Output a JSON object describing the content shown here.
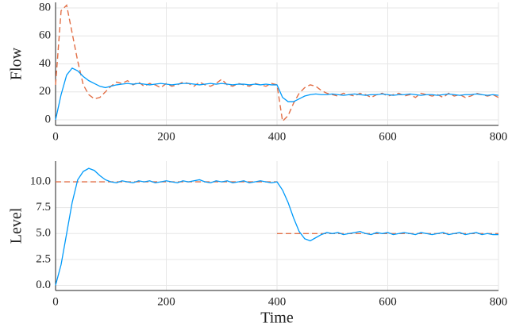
{
  "chart_data": [
    {
      "type": "line",
      "ylabel": "Flow",
      "x": [
        0,
        10,
        20,
        30,
        40,
        50,
        60,
        70,
        80,
        90,
        100,
        110,
        120,
        130,
        140,
        150,
        160,
        170,
        180,
        190,
        200,
        210,
        220,
        230,
        240,
        250,
        260,
        270,
        280,
        290,
        300,
        310,
        320,
        330,
        340,
        350,
        360,
        370,
        380,
        390,
        400,
        410,
        420,
        430,
        440,
        450,
        460,
        470,
        480,
        490,
        500,
        510,
        520,
        530,
        540,
        550,
        560,
        570,
        580,
        590,
        600,
        610,
        620,
        630,
        640,
        650,
        660,
        670,
        680,
        690,
        700,
        710,
        720,
        730,
        740,
        750,
        760,
        770,
        780,
        790,
        800
      ],
      "series": [
        {
          "color": "#e26f46",
          "dash": true,
          "values": [
            25,
            78,
            82,
            62,
            42,
            25,
            18,
            15,
            16,
            20,
            24,
            27,
            26,
            28,
            25,
            27,
            24,
            26,
            25,
            23,
            26,
            24,
            25,
            27,
            26,
            24,
            27,
            25,
            24,
            26,
            29,
            25,
            24,
            26,
            25,
            24,
            26,
            25,
            24,
            26,
            25,
            -1,
            3,
            12,
            19,
            23,
            25,
            24,
            21,
            19,
            18,
            17,
            19,
            18,
            17,
            19,
            18,
            16,
            18,
            19,
            17,
            18,
            19,
            17,
            18,
            16,
            19,
            18,
            17,
            18,
            16,
            19,
            17,
            18,
            16,
            17,
            19,
            18,
            17,
            18,
            16
          ]
        },
        {
          "color": "#009afa",
          "dash": false,
          "values": [
            0,
            18,
            32,
            37,
            35,
            31,
            28,
            26,
            24,
            23,
            24,
            25,
            25.5,
            26,
            25.5,
            26,
            25.5,
            25,
            25.5,
            26,
            25.5,
            25,
            25.5,
            26,
            26,
            25.5,
            25,
            25.5,
            26,
            25.5,
            26,
            25.5,
            25,
            25.5,
            25.5,
            25,
            25.5,
            25,
            25.5,
            25,
            25,
            16,
            13,
            13,
            15,
            17,
            18,
            18.5,
            18,
            18,
            18.5,
            18,
            17.5,
            18,
            18.5,
            18,
            17.5,
            18,
            18,
            18.5,
            18,
            17.5,
            18,
            18,
            18.5,
            18,
            17.5,
            18,
            18,
            17.5,
            18,
            18.5,
            18,
            17.5,
            18,
            18,
            18.5,
            18,
            17.5,
            18,
            17.5
          ]
        }
      ],
      "xlim": [
        0,
        800
      ],
      "xticks": [
        0,
        200,
        400,
        600,
        800
      ],
      "ylim": [
        -4,
        84
      ],
      "yticks": [
        0,
        20,
        40,
        60,
        80
      ],
      "grid": true
    },
    {
      "type": "line",
      "ylabel": "Level",
      "xlabel": "Time",
      "x": [
        0,
        10,
        20,
        30,
        40,
        50,
        60,
        70,
        80,
        90,
        100,
        110,
        120,
        130,
        140,
        150,
        160,
        170,
        180,
        190,
        200,
        210,
        220,
        230,
        240,
        250,
        260,
        270,
        280,
        290,
        300,
        310,
        320,
        330,
        340,
        350,
        360,
        370,
        380,
        390,
        400,
        410,
        420,
        430,
        440,
        450,
        460,
        470,
        480,
        490,
        500,
        510,
        520,
        530,
        540,
        550,
        560,
        570,
        580,
        590,
        600,
        610,
        620,
        630,
        640,
        650,
        660,
        670,
        680,
        690,
        700,
        710,
        720,
        730,
        740,
        750,
        760,
        770,
        780,
        790,
        800
      ],
      "series": [
        {
          "color": "#e26f46",
          "dash": true,
          "x": [
            0,
            400,
            400,
            400,
            800
          ],
          "values": [
            10,
            10,
            null,
            5,
            5
          ]
        },
        {
          "color": "#009afa",
          "dash": false,
          "values": [
            0,
            2,
            5,
            8,
            10.2,
            11,
            11.3,
            11.1,
            10.6,
            10.2,
            10,
            9.9,
            10.1,
            10,
            9.9,
            10.1,
            10,
            10.1,
            9.9,
            10,
            10.1,
            10,
            9.9,
            10.1,
            10,
            10.1,
            10.2,
            10,
            9.9,
            10.1,
            10,
            10.1,
            9.9,
            10,
            10.1,
            9.9,
            10,
            10.1,
            10,
            9.9,
            10,
            9.2,
            8,
            6.5,
            5.2,
            4.5,
            4.3,
            4.6,
            4.9,
            5.1,
            5,
            5.1,
            4.9,
            5,
            5.1,
            5.2,
            5,
            4.9,
            5.1,
            5,
            5.1,
            4.9,
            5,
            5.1,
            5,
            4.9,
            5.1,
            5,
            4.9,
            5,
            5.1,
            4.9,
            5,
            5.1,
            4.9,
            5,
            5.1,
            4.9,
            5,
            4.9,
            4.9
          ]
        }
      ],
      "xlim": [
        0,
        800
      ],
      "xticks": [
        0,
        200,
        400,
        600,
        800
      ],
      "ylim": [
        -0.5,
        12
      ],
      "yticks": [
        {
          "value": 0,
          "label": "0.0"
        },
        2.5,
        {
          "value": 5,
          "label": "5.0"
        },
        7.5,
        {
          "value": 10,
          "label": "10.0"
        }
      ],
      "grid": true
    }
  ]
}
